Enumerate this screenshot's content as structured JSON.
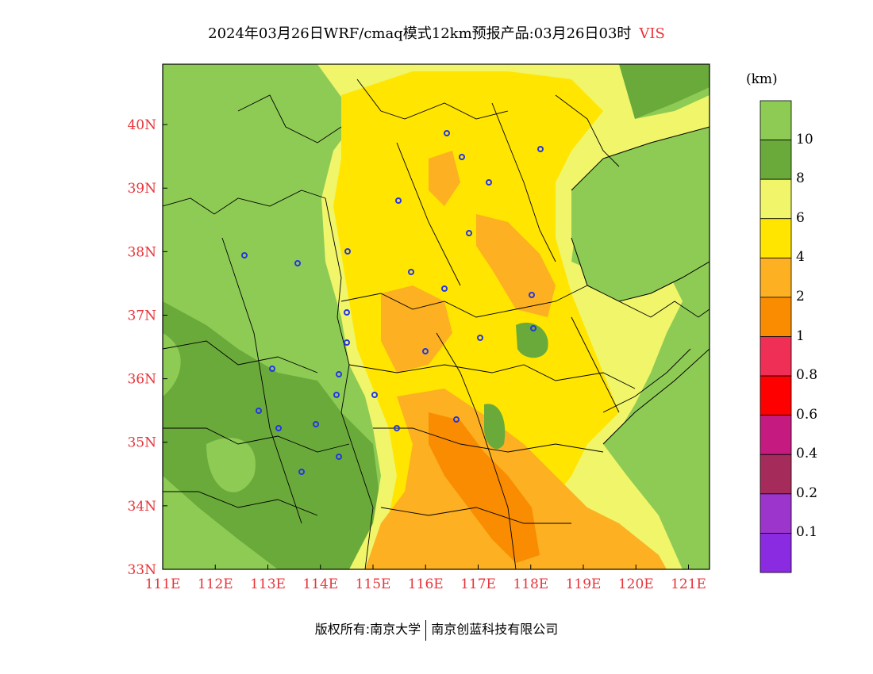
{
  "title": {
    "main": "2024年03月26日WRF/cmaq模式12km预报产品:03月26日03时",
    "variable": "VIS"
  },
  "map": {
    "lon_ticks": [
      "111E",
      "112E",
      "113E",
      "114E",
      "115E",
      "116E",
      "117E",
      "118E",
      "119E",
      "120E",
      "121E"
    ],
    "lat_ticks": [
      "40N",
      "39N",
      "38N",
      "37N",
      "36N",
      "35N",
      "34N",
      "33N"
    ],
    "lon_range": [
      111,
      121.4
    ],
    "lat_range": [
      33,
      40.95
    ],
    "colors": {
      "green": "#8ecb55",
      "darkgreen": "#6aaa3a",
      "lightyellow": "#f0f56a",
      "yellow": "#ffe500",
      "lightorange": "#fcb022",
      "orange": "#f98c00"
    }
  },
  "legend": {
    "unit": "(km)",
    "labels": [
      "10",
      "8",
      "6",
      "4",
      "2",
      "1",
      "0.8",
      "0.6",
      "0.4",
      "0.2",
      "0.1"
    ],
    "colors": [
      "#8ecb55",
      "#6aaa3a",
      "#f0f56a",
      "#ffe500",
      "#fcb022",
      "#f98c00",
      "#ef2f55",
      "#ff0000",
      "#c51a7f",
      "#a52b5a",
      "#9b35cc",
      "#8a2be2"
    ]
  },
  "copyright": {
    "left": "版权所有:南京大学",
    "right": "南京创蓝科技有限公司"
  }
}
